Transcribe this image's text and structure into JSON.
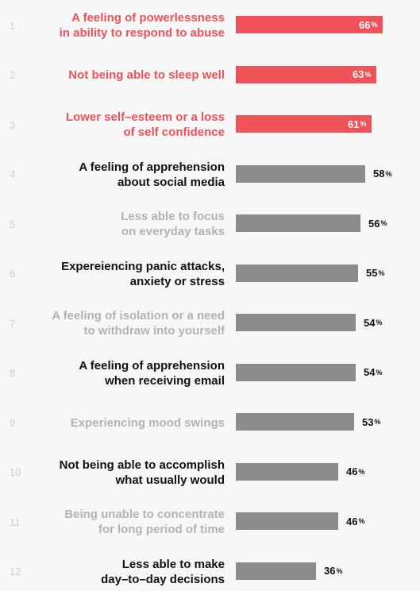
{
  "colors": {
    "highlight": "#ef5258",
    "neutral_bar": "#8c8c8c",
    "dark_text": "#111111",
    "muted_text": "#b3b3b3",
    "rank_text": "#cfcfcf"
  },
  "chart_data": {
    "type": "bar",
    "orientation": "horizontal",
    "unit": "%",
    "xlim": [
      0,
      66
    ],
    "items": [
      {
        "rank": "1",
        "lines": [
          "A feeling of powerlessness",
          "in ability to respond to abuse"
        ],
        "value": 66,
        "style": "highlight"
      },
      {
        "rank": "2",
        "lines": [
          "Not being able to sleep well"
        ],
        "value": 63,
        "style": "highlight"
      },
      {
        "rank": "3",
        "lines": [
          "Lower self–esteem or a loss",
          "of self confidence"
        ],
        "value": 61,
        "style": "highlight"
      },
      {
        "rank": "4",
        "lines": [
          "A feeling of apprehension",
          "about social media"
        ],
        "value": 58,
        "style": "dark"
      },
      {
        "rank": "5",
        "lines": [
          "Less able to focus",
          "on everyday tasks"
        ],
        "value": 56,
        "style": "muted"
      },
      {
        "rank": "6",
        "lines": [
          "Expereiencing panic attacks,",
          "anxiety or stress"
        ],
        "value": 55,
        "style": "dark"
      },
      {
        "rank": "7",
        "lines": [
          "A feeling of isolation or a need",
          "to withdraw into yourself"
        ],
        "value": 54,
        "style": "muted"
      },
      {
        "rank": "8",
        "lines": [
          "A feeling of apprehension",
          "when receiving email"
        ],
        "value": 54,
        "style": "dark"
      },
      {
        "rank": "9",
        "lines": [
          "Experiencing mood swings"
        ],
        "value": 53,
        "style": "muted"
      },
      {
        "rank": "10",
        "lines": [
          "Not being able to accomplish",
          "what usually would"
        ],
        "value": 46,
        "style": "dark"
      },
      {
        "rank": "11",
        "lines": [
          "Being unable to concentrate",
          "for long period of time"
        ],
        "value": 46,
        "style": "muted"
      },
      {
        "rank": "12",
        "lines": [
          "Less able to make",
          "day–to–day decisions"
        ],
        "value": 36,
        "style": "dark"
      }
    ]
  }
}
